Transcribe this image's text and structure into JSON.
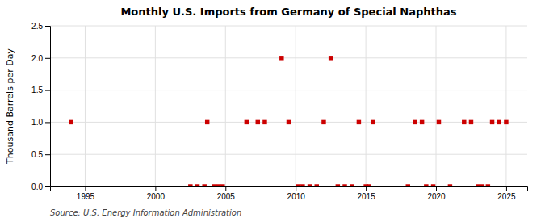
{
  "chart_data": {
    "type": "scatter",
    "title": "Monthly U.S. Imports from Germany of Special Naphthas",
    "ylabel": "Thousand Barrels per Day",
    "annotations": [
      "Source: U.S. Energy Information Administration"
    ],
    "color": "#cc0000",
    "marker": "square",
    "grid": true,
    "xlim": [
      1992.5,
      2026.5
    ],
    "ylim": [
      0.0,
      2.5
    ],
    "xticks": [
      1995,
      2000,
      2005,
      2010,
      2015,
      2020,
      2025
    ],
    "yticks": [
      {
        "value": 0.0,
        "label": "0.0"
      },
      0.5,
      {
        "value": 1.0,
        "label": "1.0"
      },
      1.5,
      {
        "value": 2.0,
        "label": "2.0"
      },
      2.5
    ],
    "x": [
      1994.0,
      2002.5,
      2003.0,
      2003.5,
      2003.7,
      2004.2,
      2004.5,
      2004.8,
      2006.5,
      2007.3,
      2007.8,
      2009.0,
      2009.5,
      2010.2,
      2010.5,
      2011.0,
      2011.5,
      2012.0,
      2012.5,
      2013.0,
      2013.5,
      2014.0,
      2014.5,
      2015.0,
      2015.2,
      2015.5,
      2018.0,
      2018.5,
      2019.0,
      2019.3,
      2019.8,
      2020.2,
      2021.0,
      2022.0,
      2022.5,
      2023.0,
      2023.3,
      2023.7,
      2024.0,
      2024.5,
      2025.0
    ],
    "values": [
      1.0,
      0.0,
      0.0,
      0.0,
      1.0,
      0.0,
      0.0,
      0.0,
      1.0,
      1.0,
      1.0,
      2.0,
      1.0,
      0.0,
      0.0,
      0.0,
      0.0,
      1.0,
      2.0,
      0.0,
      0.0,
      0.0,
      1.0,
      0.0,
      0.0,
      1.0,
      0.0,
      1.0,
      1.0,
      0.0,
      0.0,
      1.0,
      0.0,
      1.0,
      1.0,
      0.0,
      0.0,
      0.0,
      1.0,
      1.0,
      1.0
    ]
  }
}
